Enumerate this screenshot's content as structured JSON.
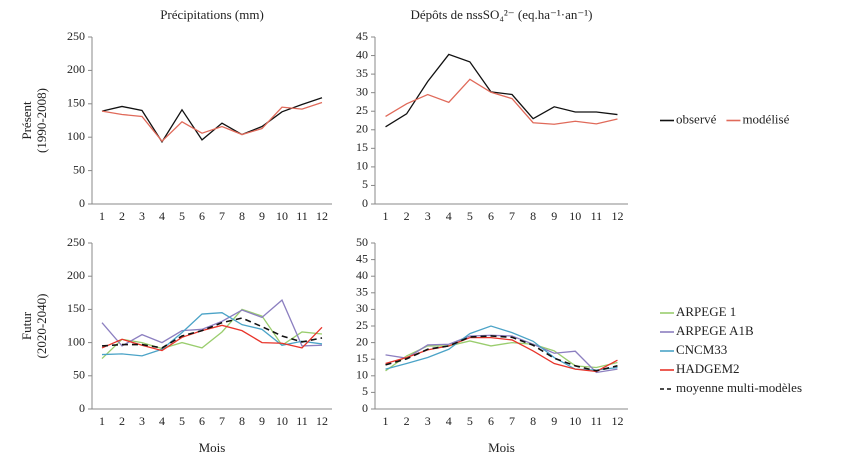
{
  "chart_data": [
    {
      "type": "line",
      "title": "Précipitations (mm)",
      "ylabel": [
        "Présent",
        "(1990-2008)"
      ],
      "categories": [
        "1",
        "2",
        "3",
        "4",
        "5",
        "6",
        "7",
        "8",
        "9",
        "10",
        "11",
        "12"
      ],
      "ylim": [
        0,
        250
      ],
      "yticks": [
        0,
        50,
        100,
        150,
        200,
        250
      ],
      "series": [
        {
          "color": "#111111",
          "values": [
            139,
            146,
            140,
            93,
            141,
            96,
            121,
            104,
            116,
            138,
            149,
            159
          ]
        },
        {
          "color": "#e06a5a",
          "values": [
            139,
            134,
            131,
            94,
            123,
            106,
            116,
            104,
            113,
            145,
            142,
            152
          ]
        }
      ]
    },
    {
      "type": "line",
      "title": "Dépôts de nssSO₄²⁻ (eq.ha⁻¹·an⁻¹)",
      "categories": [
        "1",
        "2",
        "3",
        "4",
        "5",
        "6",
        "7",
        "8",
        "9",
        "10",
        "11",
        "12"
      ],
      "ylim": [
        0,
        45
      ],
      "yticks": [
        0,
        5,
        10,
        15,
        20,
        25,
        30,
        35,
        40,
        45
      ],
      "legend": "right",
      "series": [
        {
          "name": "observé",
          "color": "#111111",
          "values": [
            20.8,
            24.3,
            33,
            40.3,
            38.3,
            30.2,
            29.5,
            23,
            26.2,
            24.8,
            24.8,
            24.1
          ]
        },
        {
          "name": "modélisé",
          "color": "#e06a5a",
          "values": [
            23.6,
            27,
            29.5,
            27.4,
            33.6,
            30.1,
            28.4,
            21.9,
            21.5,
            22.3,
            21.6,
            22.9
          ]
        }
      ]
    },
    {
      "type": "line",
      "ylabel": [
        "Futur",
        "(2020-2040)"
      ],
      "xlabel": "Mois",
      "categories": [
        "1",
        "2",
        "3",
        "4",
        "5",
        "6",
        "7",
        "8",
        "9",
        "10",
        "11",
        "12"
      ],
      "ylim": [
        0,
        250
      ],
      "yticks": [
        0,
        50,
        100,
        150,
        200,
        250
      ],
      "series": [
        {
          "color": "#9acd6e",
          "values": [
            76,
            105,
            100,
            91,
            100,
            92,
            116,
            150,
            140,
            96,
            116,
            113
          ]
        },
        {
          "color": "#8c7fc0",
          "values": [
            130,
            95,
            112,
            100,
            118,
            120,
            132,
            149,
            138,
            164,
            95,
            96
          ]
        },
        {
          "color": "#4ba3c7",
          "values": [
            82,
            83,
            80,
            90,
            115,
            143,
            145,
            127,
            120,
            96,
            102,
            98
          ]
        },
        {
          "color": "#e8342a",
          "values": [
            92,
            105,
            96,
            88,
            108,
            118,
            126,
            118,
            100,
            99,
            92,
            123
          ]
        },
        {
          "color": "#111111",
          "dash": true,
          "values": [
            95,
            97,
            97,
            92,
            110,
            118,
            130,
            137,
            124,
            110,
            101,
            107
          ]
        }
      ]
    },
    {
      "type": "line",
      "xlabel": "Mois",
      "categories": [
        "1",
        "2",
        "3",
        "4",
        "5",
        "6",
        "7",
        "8",
        "9",
        "10",
        "11",
        "12"
      ],
      "ylim": [
        0,
        50
      ],
      "yticks": [
        0,
        5,
        10,
        15,
        20,
        25,
        30,
        35,
        40,
        45,
        50
      ],
      "legend": "right",
      "series": [
        {
          "name": "ARPEGE 1",
          "color": "#9acd6e",
          "values": [
            11.5,
            16,
            19,
            19,
            20.5,
            19,
            20,
            19.5,
            17.5,
            13,
            12.5,
            14
          ]
        },
        {
          "name": "ARPEGE A1B",
          "color": "#8c7fc0",
          "values": [
            16.3,
            15.3,
            19.3,
            19.5,
            22,
            22.2,
            22,
            19.5,
            16.8,
            17.4,
            11,
            12
          ]
        },
        {
          "name": "CNCM33",
          "color": "#4ba3c7",
          "values": [
            12,
            13.7,
            15.5,
            18,
            22.7,
            25,
            23,
            20.4,
            15.5,
            12,
            11.7,
            12.5
          ]
        },
        {
          "name": "HADGEM2",
          "color": "#e8342a",
          "values": [
            13.7,
            15.5,
            17.8,
            19,
            21.5,
            21.5,
            20.8,
            17.5,
            13.7,
            12,
            11.3,
            14.7
          ]
        },
        {
          "name": "moyenne multi-modèles",
          "color": "#111111",
          "dash": true,
          "values": [
            13.3,
            15.1,
            18,
            19,
            21.7,
            22,
            21.6,
            19.2,
            15.3,
            13,
            11.5,
            13
          ]
        }
      ]
    }
  ]
}
